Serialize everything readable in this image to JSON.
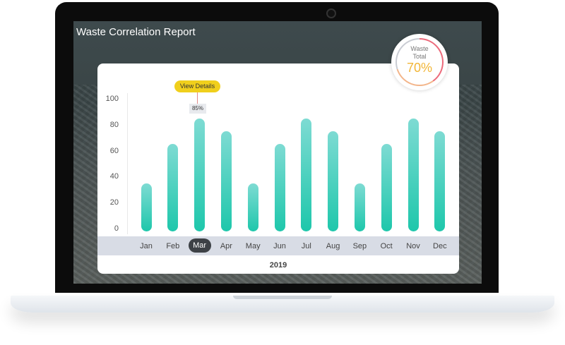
{
  "title": "Waste Correlation Report",
  "gauge": {
    "label_line1": "Waste",
    "label_line2": "Total",
    "value": "70%",
    "fraction": 0.7
  },
  "tooltip": {
    "button": "View Details",
    "value": "85%"
  },
  "colors": {
    "bar_top": "#7edbd3",
    "bar_bottom": "#1ec7ab",
    "accent_yellow": "#f0cf1c",
    "gauge_value": "#f2b637"
  },
  "chart_data": {
    "type": "bar",
    "categories": [
      "Jan",
      "Feb",
      "Mar",
      "Apr",
      "May",
      "Jun",
      "Jul",
      "Aug",
      "Sep",
      "Oct",
      "Nov",
      "Dec"
    ],
    "values": [
      35,
      65,
      85,
      75,
      35,
      65,
      85,
      75,
      35,
      65,
      85,
      75
    ],
    "yticks": [
      "0",
      "20",
      "40",
      "60",
      "80",
      "100"
    ],
    "ylim": [
      0,
      100
    ],
    "xlabel": "2019",
    "selected": "Mar"
  }
}
